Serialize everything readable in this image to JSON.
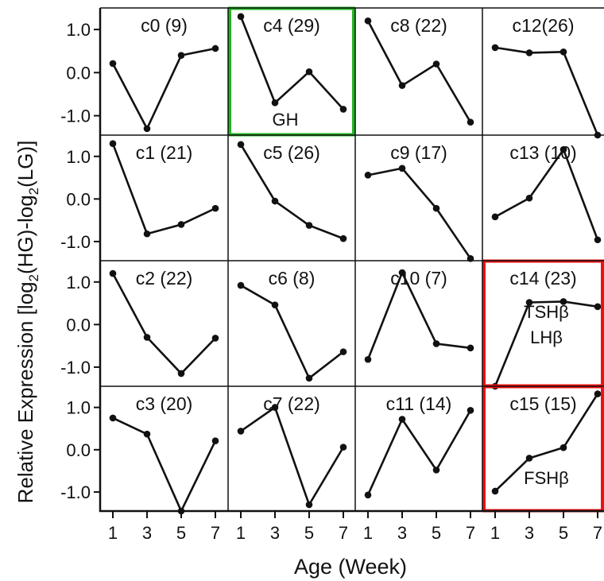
{
  "colors": {
    "line": "#111111",
    "highlight_green": "#22b522",
    "highlight_red": "#ee1111"
  },
  "chart_data": {
    "type": "line",
    "ylabel_parts": [
      "Relative Expression [log",
      "2",
      "(HG)-log",
      "2",
      "(LG)]"
    ],
    "xlabel": "Age (Week)",
    "x": [
      1,
      3,
      5,
      7
    ],
    "x_ticks": [
      "1",
      "3",
      "5",
      "7"
    ],
    "ylim": [
      -1.45,
      1.5
    ],
    "y_ticks": [
      "1.0",
      "0.0",
      "-1.0"
    ],
    "grid": "4x4",
    "panels": [
      {
        "label": "c0 (9)",
        "values": [
          0.21,
          -1.3,
          0.4,
          0.56
        ],
        "highlight": "",
        "annotations": []
      },
      {
        "label": "c4 (29)",
        "values": [
          1.3,
          -0.7,
          0.02,
          -0.85
        ],
        "highlight": "green",
        "annotations": [
          "GH"
        ]
      },
      {
        "label": "c8 (22)",
        "values": [
          1.2,
          -0.3,
          0.2,
          -1.15
        ],
        "highlight": "",
        "annotations": []
      },
      {
        "label": "c12(26)",
        "values": [
          0.58,
          0.46,
          0.48,
          -1.45
        ],
        "highlight": "",
        "annotations": []
      },
      {
        "label": "c1 (21)",
        "values": [
          1.3,
          -0.82,
          -0.6,
          -0.22
        ],
        "highlight": "",
        "annotations": []
      },
      {
        "label": "c5 (26)",
        "values": [
          1.28,
          -0.05,
          -0.62,
          -0.93
        ],
        "highlight": "",
        "annotations": []
      },
      {
        "label": "c9 (17)",
        "values": [
          0.56,
          0.72,
          -0.22,
          -1.4
        ],
        "highlight": "",
        "annotations": []
      },
      {
        "label": "c13 (10)",
        "values": [
          -0.42,
          0.02,
          1.16,
          -0.96
        ],
        "highlight": "",
        "annotations": []
      },
      {
        "label": "c2 (22)",
        "values": [
          1.2,
          -0.3,
          -1.15,
          -0.32
        ],
        "highlight": "",
        "annotations": []
      },
      {
        "label": "c6 (8)",
        "values": [
          0.92,
          0.46,
          -1.26,
          -0.64
        ],
        "highlight": "",
        "annotations": []
      },
      {
        "label": "c10 (7)",
        "values": [
          -0.82,
          1.22,
          -0.45,
          -0.55
        ],
        "highlight": "",
        "annotations": []
      },
      {
        "label": "c14 (23)",
        "values": [
          -1.45,
          0.52,
          0.54,
          0.42
        ],
        "highlight": "red",
        "annotations": [
          "TSHβ",
          "LHβ"
        ]
      },
      {
        "label": "c3 (20)",
        "values": [
          0.75,
          0.37,
          -1.45,
          0.21
        ],
        "highlight": "",
        "annotations": []
      },
      {
        "label": "c7 (22)",
        "values": [
          0.44,
          1.0,
          -1.3,
          0.06
        ],
        "highlight": "",
        "annotations": []
      },
      {
        "label": "c11 (14)",
        "values": [
          -1.07,
          0.72,
          -0.48,
          0.93
        ],
        "highlight": "",
        "annotations": []
      },
      {
        "label": "c15 (15)",
        "values": [
          -0.98,
          -0.2,
          0.05,
          1.32
        ],
        "highlight": "red",
        "annotations": [
          "FSHβ"
        ]
      }
    ]
  }
}
